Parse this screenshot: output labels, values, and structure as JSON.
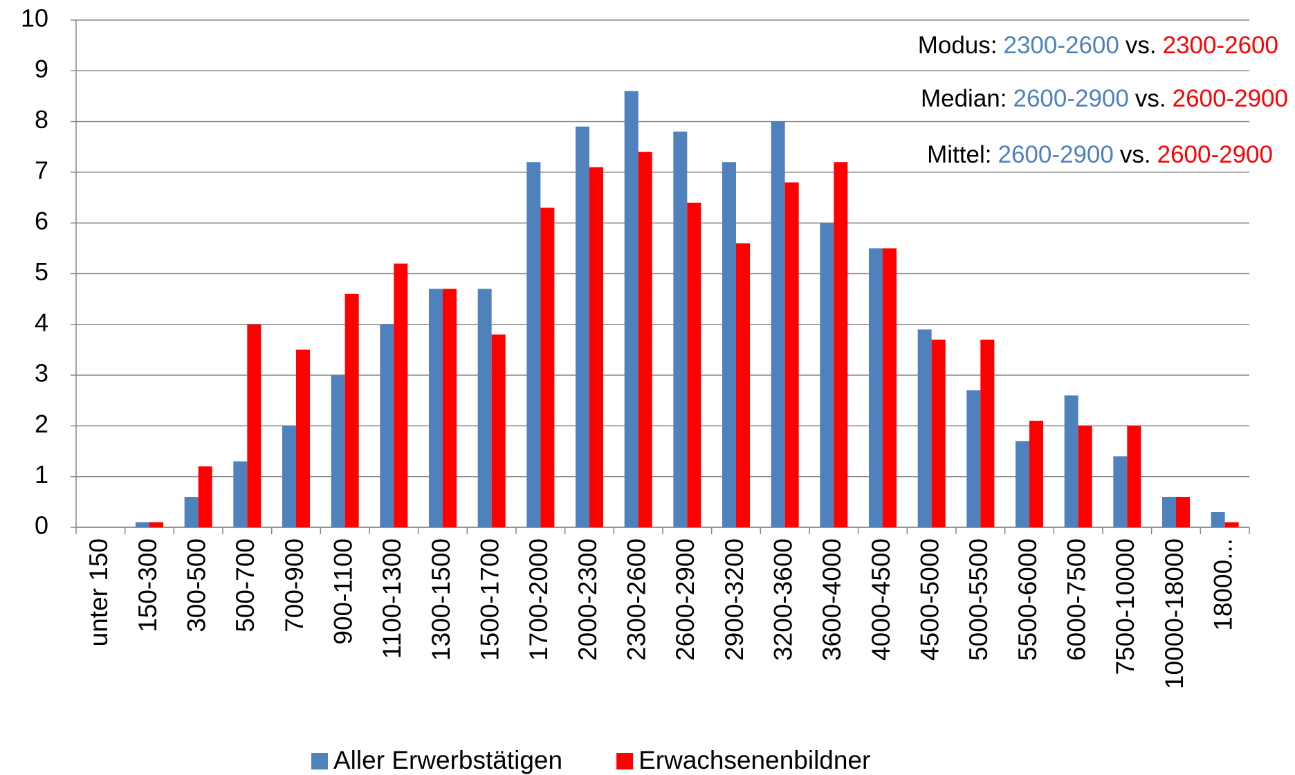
{
  "chart_data": {
    "type": "bar",
    "categories": [
      "unter 150",
      "150-300",
      "300-500",
      "500-700",
      "700-900",
      "900-1100",
      "1100-1300",
      "1300-1500",
      "1500-1700",
      "1700-2000",
      "2000-2300",
      "2300-2600",
      "2600-2900",
      "2900-3200",
      "3200-3600",
      "3600-4000",
      "4000-4500",
      "4500-5000",
      "5000-5500",
      "5500-6000",
      "6000-7500",
      "7500-10000",
      "10000-18000",
      "18000..."
    ],
    "series": [
      {
        "name": "Aller Erwerbstätigen",
        "color": "#4f81bd",
        "values": [
          0,
          0.1,
          0.6,
          1.3,
          2.0,
          3.0,
          4.0,
          4.7,
          4.7,
          7.2,
          7.9,
          8.6,
          7.8,
          7.2,
          8.0,
          6.0,
          5.5,
          3.9,
          2.7,
          1.7,
          2.6,
          1.4,
          0.6,
          0.3
        ]
      },
      {
        "name": "Erwachsenenbildner",
        "color": "#ff0000",
        "values": [
          0,
          0.1,
          1.2,
          4.0,
          3.5,
          4.6,
          5.2,
          4.7,
          3.8,
          6.3,
          7.1,
          7.4,
          6.4,
          5.6,
          6.8,
          7.2,
          5.5,
          3.7,
          3.7,
          2.1,
          2.0,
          2.0,
          0.6,
          0.1
        ]
      }
    ],
    "ylim": [
      0,
      10
    ],
    "yticks": [
      0,
      1,
      2,
      3,
      4,
      5,
      6,
      7,
      8,
      9,
      10
    ],
    "grid": true,
    "legend": "bottom",
    "annotations": [
      {
        "label": "Modus:",
        "first": "2300-2600",
        "vs": "vs.",
        "second": "2300-2600"
      },
      {
        "label": "Median:",
        "first": "2600-2900",
        "vs": "vs.",
        "second": "2600-2900"
      },
      {
        "label": "Mittel:",
        "first": "2600-2900",
        "vs": "vs.",
        "second": "2600-2900"
      }
    ]
  }
}
